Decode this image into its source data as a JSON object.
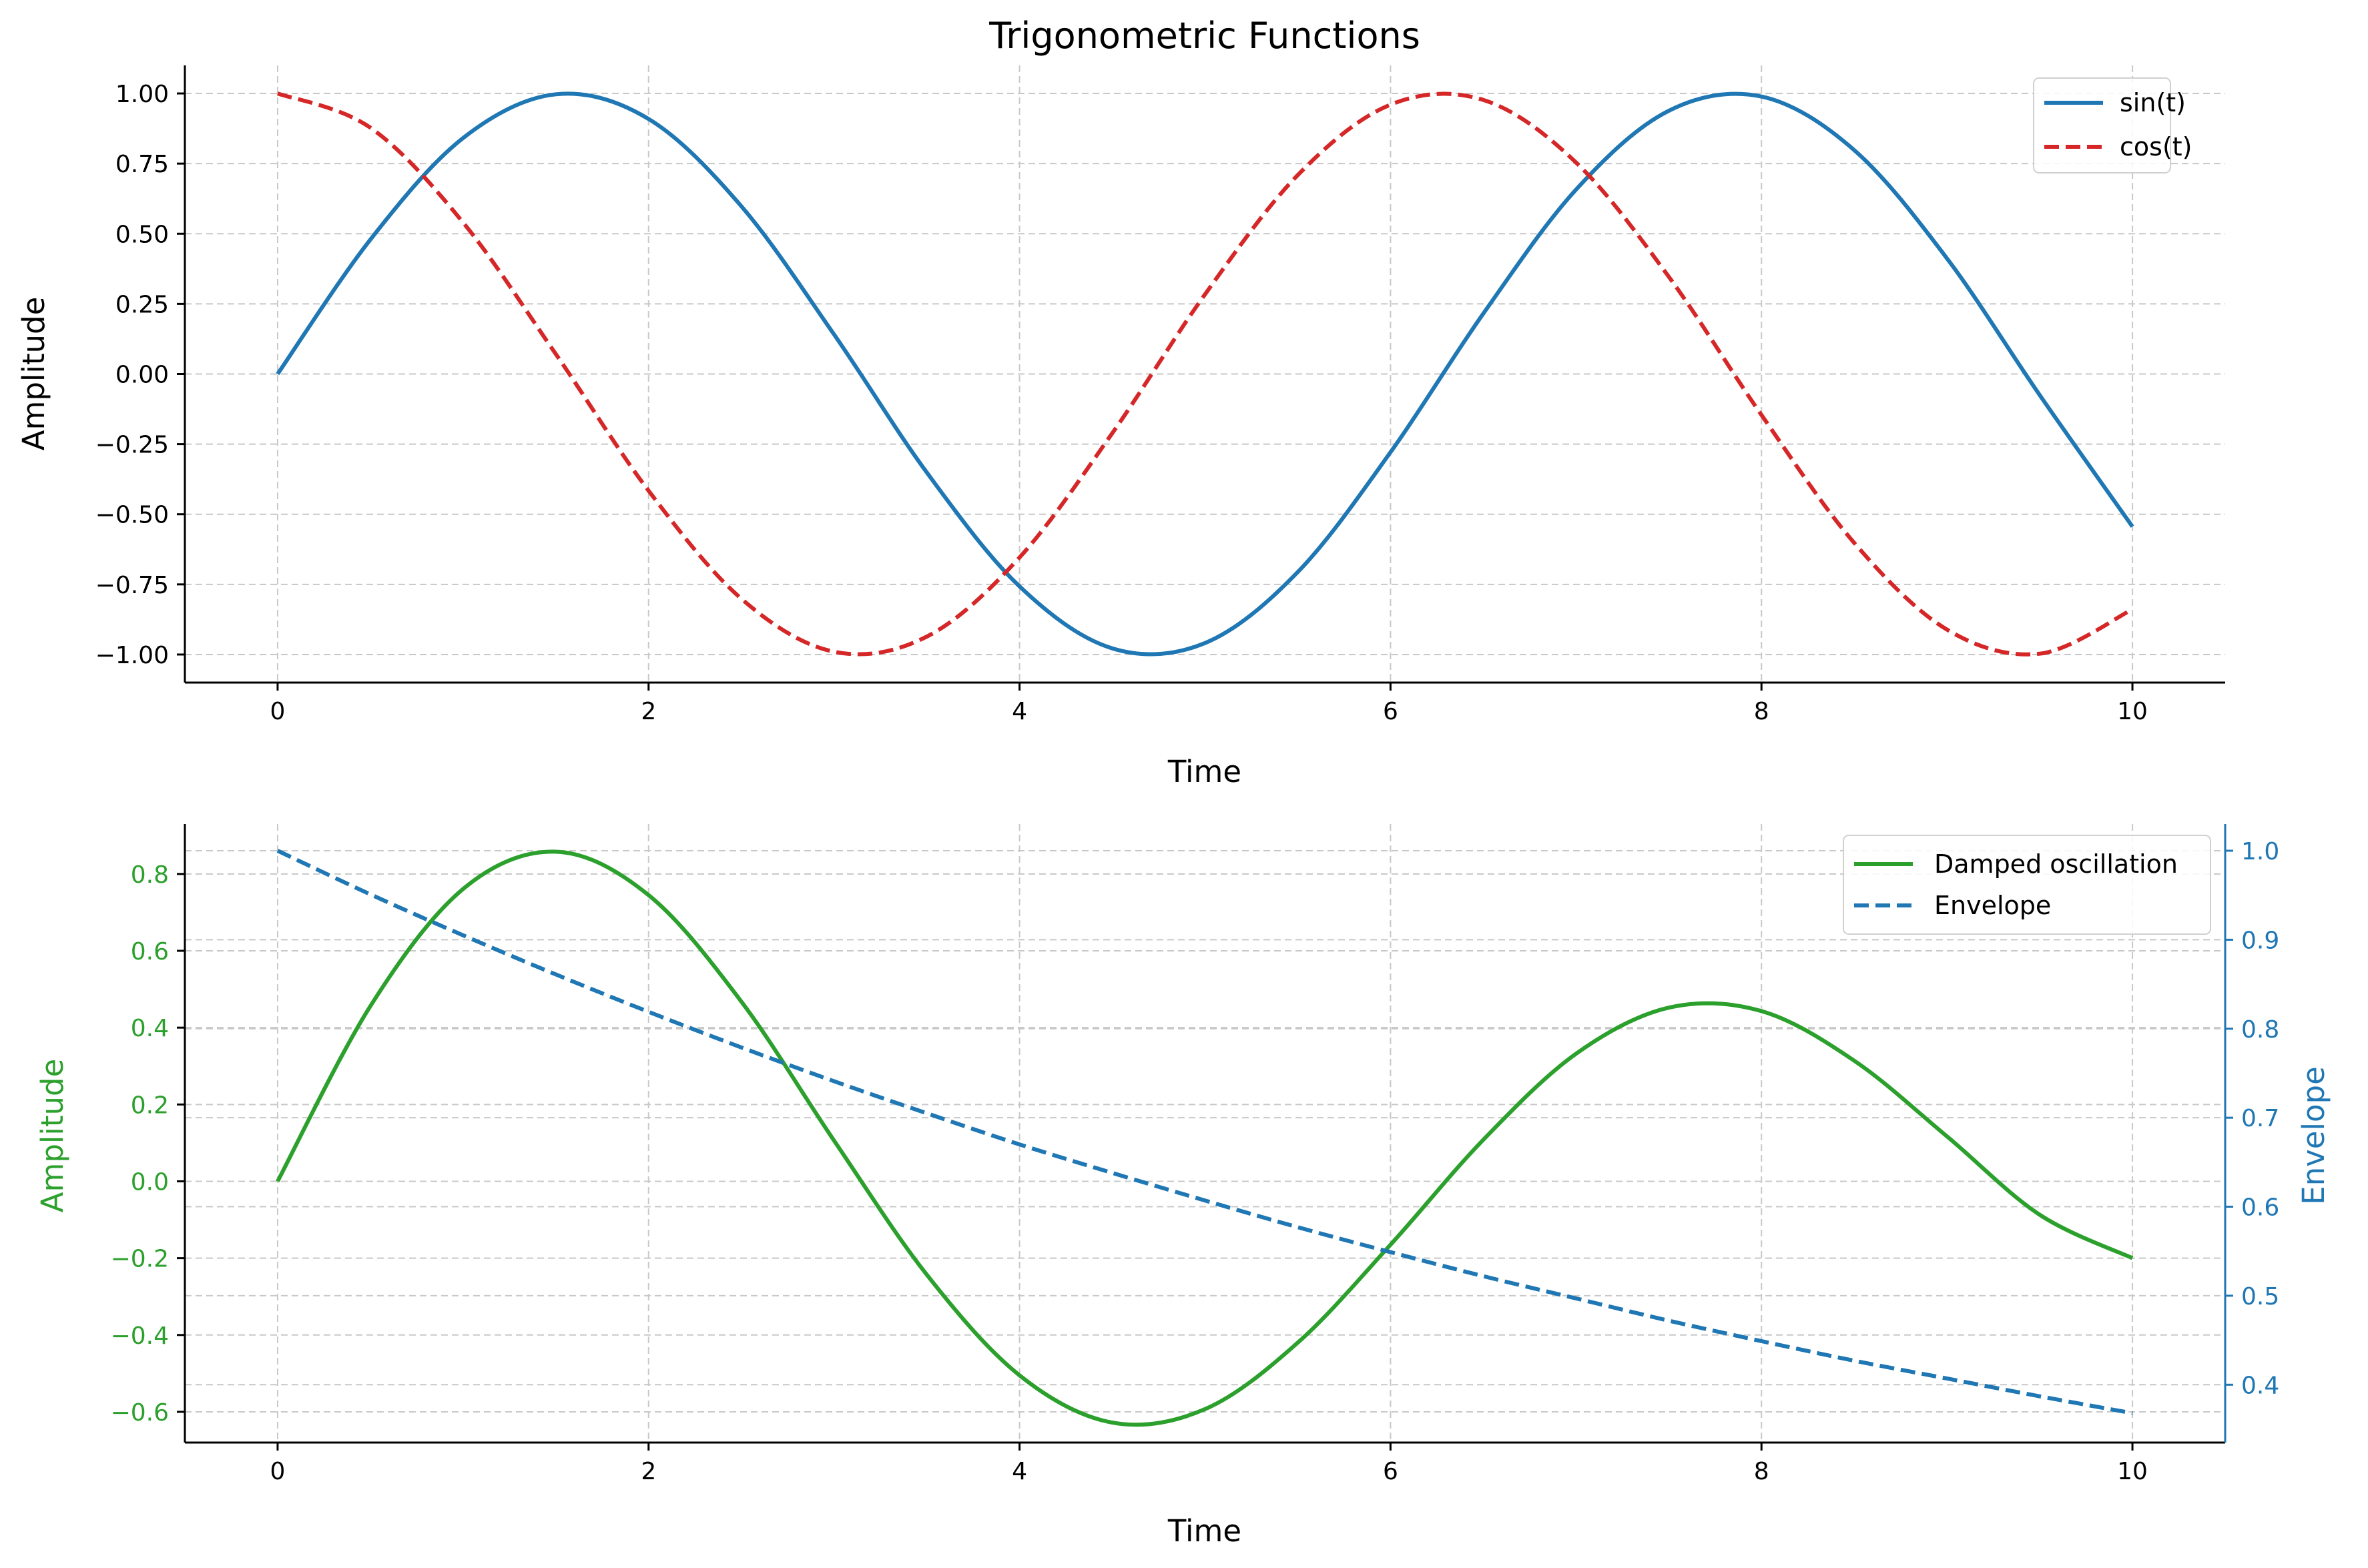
{
  "colors": {
    "sin": "#1f77b4",
    "cos": "#d62728",
    "damped": "#2ca02c",
    "envelope": "#1f77b4",
    "grid": "#c8c8c8",
    "axis": "#000000"
  },
  "chart_data": [
    {
      "type": "line",
      "title": "Trigonometric Functions",
      "xlabel": "Time",
      "ylabel": "Amplitude",
      "xlim": [
        -0.5,
        10.5
      ],
      "ylim": [
        -1.1,
        1.1
      ],
      "grid": true,
      "legend_position": "top-right",
      "x_ticks": [
        "0",
        "2",
        "4",
        "6",
        "8",
        "10"
      ],
      "y_ticks": [
        "1.00",
        "0.75",
        "0.50",
        "0.25",
        "0.00",
        "−0.25",
        "−0.50",
        "−0.75",
        "−1.00"
      ],
      "x": [
        0,
        0.5,
        1,
        1.5,
        2,
        2.5,
        3,
        3.5,
        4,
        4.5,
        5,
        5.5,
        6,
        6.5,
        7,
        7.5,
        8,
        8.5,
        9,
        9.5,
        10
      ],
      "series": [
        {
          "name": "sin(t)",
          "style": "solid",
          "values": [
            0.0,
            0.479,
            0.841,
            0.997,
            0.909,
            0.598,
            0.141,
            -0.351,
            -0.757,
            -0.978,
            -0.959,
            -0.706,
            -0.279,
            0.215,
            0.657,
            0.938,
            0.989,
            0.798,
            0.412,
            -0.075,
            -0.544
          ]
        },
        {
          "name": "cos(t)",
          "style": "dashed",
          "values": [
            1.0,
            0.878,
            0.54,
            0.071,
            -0.416,
            -0.801,
            -0.99,
            -0.936,
            -0.654,
            -0.211,
            0.284,
            0.709,
            0.96,
            0.977,
            0.754,
            0.347,
            -0.146,
            -0.602,
            -0.911,
            -0.997,
            -0.839
          ]
        }
      ]
    },
    {
      "type": "line",
      "xlabel": "Time",
      "ylabel": "Amplitude",
      "ylabel_right": "Envelope",
      "xlim": [
        -0.5,
        10.5
      ],
      "ylim": [
        -0.68,
        0.93
      ],
      "ylim_right": [
        0.335,
        1.03
      ],
      "grid": true,
      "legend_position": "top-right",
      "x_ticks": [
        "0",
        "2",
        "4",
        "6",
        "8",
        "10"
      ],
      "y_ticks": [
        "0.8",
        "0.6",
        "0.4",
        "0.2",
        "0.0",
        "−0.2",
        "−0.4",
        "−0.6"
      ],
      "y_ticks_right": [
        "1.0",
        "0.9",
        "0.8",
        "0.7",
        "0.6",
        "0.5",
        "0.4"
      ],
      "x": [
        0,
        0.5,
        1,
        1.5,
        2,
        2.5,
        3,
        3.5,
        4,
        4.5,
        5,
        5.5,
        6,
        6.5,
        7,
        7.5,
        8,
        8.5,
        9,
        9.5,
        10
      ],
      "series": [
        {
          "name": "Damped oscillation",
          "style": "solid",
          "axis": "left",
          "values": [
            0.0,
            0.456,
            0.761,
            0.858,
            0.745,
            0.468,
            0.106,
            -0.243,
            -0.505,
            -0.628,
            -0.593,
            -0.42,
            -0.165,
            0.108,
            0.332,
            0.452,
            0.443,
            0.314,
            0.117,
            -0.087,
            -0.2
          ]
        },
        {
          "name": "Envelope",
          "style": "dashed",
          "axis": "right",
          "values": [
            1.0,
            0.951,
            0.905,
            0.861,
            0.819,
            0.779,
            0.741,
            0.705,
            0.67,
            0.638,
            0.607,
            0.577,
            0.549,
            0.522,
            0.497,
            0.472,
            0.449,
            0.427,
            0.407,
            0.387,
            0.368
          ]
        }
      ]
    }
  ]
}
